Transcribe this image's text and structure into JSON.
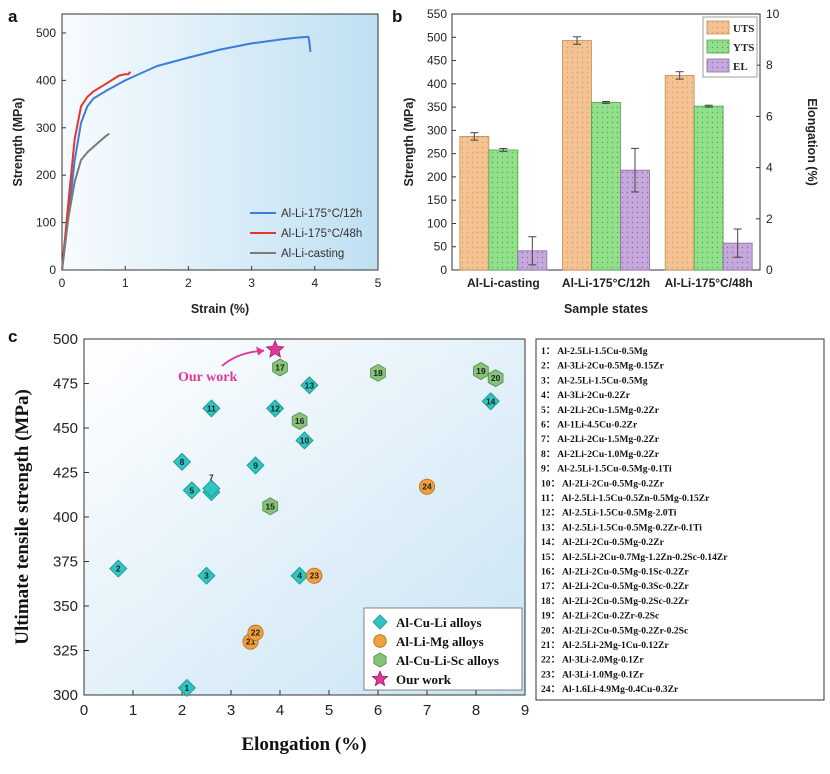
{
  "panels": {
    "a": "a",
    "b": "b",
    "c": "c"
  },
  "chart_data": [
    {
      "type": "line",
      "panel": "a",
      "xlabel": "Strain (%)",
      "ylabel": "Strength (MPa)",
      "xlim": [
        0,
        5
      ],
      "ylim": [
        0,
        540
      ],
      "xticks": [
        0,
        1,
        2,
        3,
        4,
        5
      ],
      "yticks": [
        0,
        100,
        200,
        300,
        400,
        500
      ],
      "legend_position": "bottom-right",
      "series": [
        {
          "name": "Al-Li-175°C/12h",
          "color": "#3b7dd8",
          "x": [
            0,
            0.1,
            0.2,
            0.3,
            0.4,
            0.5,
            0.7,
            1.0,
            1.5,
            2.0,
            2.5,
            3.0,
            3.5,
            3.7,
            3.9,
            3.92,
            3.93
          ],
          "y": [
            0,
            110,
            230,
            310,
            345,
            362,
            378,
            400,
            430,
            448,
            465,
            478,
            487,
            490,
            492,
            475,
            460
          ]
        },
        {
          "name": "Al-Li-175°C/48h",
          "color": "#e8322d",
          "x": [
            0,
            0.1,
            0.2,
            0.3,
            0.4,
            0.5,
            0.7,
            0.9,
            1.0,
            1.05,
            1.08
          ],
          "y": [
            0,
            140,
            275,
            345,
            365,
            377,
            393,
            410,
            413,
            413,
            418
          ]
        },
        {
          "name": "Al-Li-casting",
          "color": "#7a7a7a",
          "x": [
            0,
            0.1,
            0.2,
            0.3,
            0.4,
            0.5,
            0.6,
            0.7,
            0.75
          ],
          "y": [
            0,
            110,
            185,
            232,
            248,
            260,
            272,
            283,
            288
          ]
        }
      ]
    },
    {
      "type": "bar",
      "panel": "b",
      "xlabel": "Sample states",
      "ylabel": "Strength (MPa)",
      "y2label": "Elongation (%)",
      "categories": [
        "Al-Li-casting",
        "Al-Li-175°C/12h",
        "Al-Li-175°C/48h"
      ],
      "ylim": [
        0,
        550
      ],
      "y2lim": [
        0,
        10
      ],
      "yticks": [
        0,
        50,
        100,
        150,
        200,
        250,
        300,
        350,
        400,
        450,
        500,
        550
      ],
      "y2ticks": [
        0,
        2,
        4,
        6,
        8,
        10
      ],
      "legend_position": "top-right",
      "series": [
        {
          "name": "UTS",
          "axis": "left",
          "color": "#f2c08f",
          "values": [
            287,
            493,
            418
          ],
          "errors": [
            8,
            8,
            8
          ]
        },
        {
          "name": "YTS",
          "axis": "left",
          "color": "#8fe08a",
          "values": [
            258,
            360,
            352
          ],
          "errors": [
            3,
            2,
            2
          ]
        },
        {
          "name": "EL",
          "axis": "right",
          "color": "#c2a3d8",
          "values": [
            0.75,
            3.9,
            1.05
          ],
          "errors": [
            0.55,
            0.85,
            0.55
          ]
        }
      ]
    },
    {
      "type": "scatter",
      "panel": "c",
      "xlabel": "Elongation (%)",
      "ylabel": "Ultimate tensile strength (MPa)",
      "xlim": [
        0,
        9
      ],
      "ylim": [
        300,
        500
      ],
      "xticks": [
        0,
        1,
        2,
        3,
        4,
        5,
        6,
        7,
        8,
        9
      ],
      "yticks": [
        300,
        325,
        350,
        375,
        400,
        425,
        450,
        475,
        500
      ],
      "legend_position": "bottom-right",
      "annotation": "Our work",
      "series": [
        {
          "name": "Al-Cu-Li alloys",
          "marker": "diamond",
          "color": "#2ec4c0",
          "points": [
            {
              "id": "1",
              "x": 2.1,
              "y": 304
            },
            {
              "id": "2",
              "x": 0.7,
              "y": 371
            },
            {
              "id": "3",
              "x": 2.5,
              "y": 367
            },
            {
              "id": "4",
              "x": 4.4,
              "y": 367
            },
            {
              "id": "5",
              "x": 2.2,
              "y": 415
            },
            {
              "id": "6",
              "x": 2.6,
              "y": 414
            },
            {
              "id": "7",
              "x": 2.6,
              "y": 416
            },
            {
              "id": "8",
              "x": 2.0,
              "y": 431
            },
            {
              "id": "9",
              "x": 3.5,
              "y": 429
            },
            {
              "id": "10",
              "x": 4.5,
              "y": 443
            },
            {
              "id": "11",
              "x": 2.6,
              "y": 461
            },
            {
              "id": "12",
              "x": 3.9,
              "y": 461
            },
            {
              "id": "13",
              "x": 4.6,
              "y": 474
            },
            {
              "id": "14",
              "x": 8.3,
              "y": 465
            }
          ]
        },
        {
          "name": "Al-Li-Mg alloys",
          "marker": "circle",
          "color": "#f0a040",
          "points": [
            {
              "id": "21",
              "x": 3.4,
              "y": 330
            },
            {
              "id": "22",
              "x": 3.5,
              "y": 335
            },
            {
              "id": "23",
              "x": 4.7,
              "y": 367
            },
            {
              "id": "24",
              "x": 7.0,
              "y": 417
            }
          ]
        },
        {
          "name": "Al-Cu-Li-Sc alloys",
          "marker": "hexagon",
          "color": "#86c27a",
          "points": [
            {
              "id": "15",
              "x": 3.8,
              "y": 406
            },
            {
              "id": "16",
              "x": 4.4,
              "y": 454
            },
            {
              "id": "17",
              "x": 4.0,
              "y": 484
            },
            {
              "id": "18",
              "x": 6.0,
              "y": 481
            },
            {
              "id": "19",
              "x": 8.1,
              "y": 482
            },
            {
              "id": "20",
              "x": 8.4,
              "y": 478
            }
          ]
        },
        {
          "name": "Our work",
          "marker": "star",
          "color": "#e0389a",
          "points": [
            {
              "id": "",
              "x": 3.9,
              "y": 494
            }
          ]
        }
      ]
    }
  ],
  "references": [
    "Al-2.5Li-1.5Cu-0.5Mg",
    "Al-3Li-2Cu-0.5Mg-0.15Zr",
    "Al-2.5Li-1.5Cu-0.5Mg",
    "Al-3Li-2Cu-0.2Zr",
    "Al-2Li-2Cu-1.5Mg-0.2Zr",
    "Al-1Li-4.5Cu-0.2Zr",
    "Al-2Li-2Cu-1.5Mg-0.2Zr",
    "Al-2Li-2Cu-1.0Mg-0.2Zr",
    "Al-2.5Li-1.5Cu-0.5Mg-0.1Ti",
    "Al-2Li-2Cu-0.5Mg-0.2Zr",
    "Al-2.5Li-1.5Cu-0.5Zn-0.5Mg-0.15Zr",
    "Al-2.5Li-1.5Cu-0.5Mg-2.0Ti",
    "Al-2.5Li-1.5Cu-0.5Mg-0.2Zr-0.1Ti",
    "Al-2Li-2Cu-0.5Mg-0.2Zr",
    "Al-2.5Li-2Cu-0.7Mg-1.2Zn-0.2Sc-0.14Zr",
    "Al-2Li-2Cu-0.5Mg-0.1Sc-0.2Zr",
    "Al-2Li-2Cu-0.5Mg-0.3Sc-0.2Zr",
    "Al-2Li-2Cu-0.5Mg-0.2Sc-0.2Zr",
    "Al-2Li-2Cu-0.2Zr-0.2Sc",
    "Al-2Li-2Cu-0.5Mg-0.2Zr-0.2Sc",
    "Al-2.5Li-2Mg-1Cu-0.12Zr",
    "Al-3Li-2.0Mg-0.1Zr",
    "Al-3Li-1.0Mg-0.1Zr",
    "Al-1.6Li-4.9Mg-0.4Cu-0.3Zr"
  ],
  "colors": {
    "bg_gradient_light": "#f4f9fd",
    "bg_gradient_dark": "#cfe4f4"
  }
}
